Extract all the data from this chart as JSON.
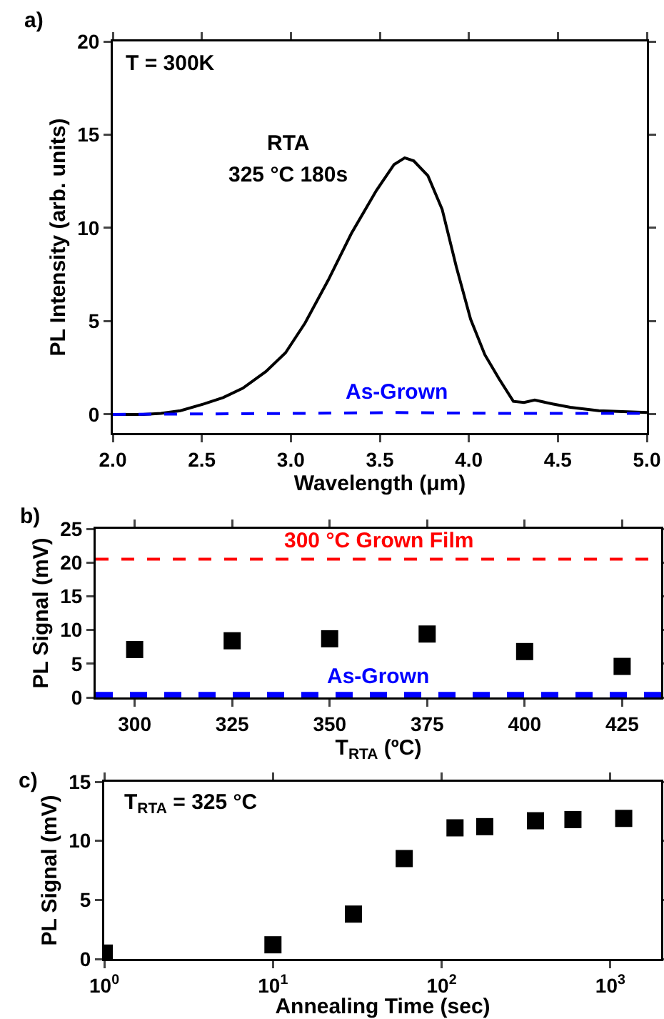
{
  "chart_data": [
    {
      "type": "line",
      "xlabel": "Wavelength (μm)",
      "ylabel": "PL Intensity (arb. units)",
      "annotations": [
        "a)",
        "T = 300K",
        "RTA",
        "325 °C 180s"
      ],
      "xlim": [
        2,
        5
      ],
      "ylim": [
        -1,
        20
      ],
      "xticks": [
        {
          "value": 2,
          "label": "2.0"
        },
        {
          "value": 2.5,
          "label": "2.5"
        },
        {
          "value": 3,
          "label": "3.0"
        },
        {
          "value": 3.5,
          "label": "3.5"
        },
        {
          "value": 4,
          "label": "4.0"
        },
        {
          "value": 4.5,
          "label": "4.5"
        },
        {
          "value": 5,
          "label": "5.0"
        }
      ],
      "yticks": [
        0,
        5,
        10,
        15,
        20
      ],
      "grid": false,
      "legend": false,
      "series": [
        {
          "color": "#000000",
          "line_style": "solid",
          "x": [
            2.0,
            2.17,
            2.27,
            2.38,
            2.51,
            2.62,
            2.73,
            2.86,
            2.97,
            3.08,
            3.21,
            3.34,
            3.48,
            3.58,
            3.64,
            3.69,
            3.77,
            3.85,
            3.93,
            4.01,
            4.09,
            4.17,
            4.25,
            4.31,
            4.37,
            4.47,
            4.57,
            4.73,
            5.0
          ],
          "values": [
            0,
            0,
            0.05,
            0.2,
            0.56,
            0.9,
            1.4,
            2.3,
            3.3,
            4.9,
            7.2,
            9.7,
            12.0,
            13.4,
            13.76,
            13.6,
            12.8,
            11.0,
            7.9,
            5.1,
            3.2,
            1.9,
            0.7,
            0.64,
            0.77,
            0.56,
            0.38,
            0.2,
            0.1
          ]
        },
        {
          "name": "As-Grown",
          "color": "#0000ff",
          "line_style": "dashed",
          "x": [
            2.0,
            3.0,
            3.6,
            4.2,
            5.0
          ],
          "values": [
            0,
            0.05,
            0.1,
            0.05,
            0.05
          ]
        }
      ]
    },
    {
      "type": "scatter",
      "xlabel": "T$_{RTA}$ (ºC)",
      "ylabel": "PL Signal (mV)",
      "annotations": [
        "b)"
      ],
      "xlim": [
        290,
        435
      ],
      "ylim": [
        0,
        25
      ],
      "xticks": [
        300,
        325,
        350,
        375,
        400,
        425
      ],
      "yticks": [
        0,
        5,
        10,
        15,
        20,
        25
      ],
      "grid": false,
      "legend": false,
      "marker": "square",
      "x": [
        300,
        325,
        350,
        375,
        400,
        425
      ],
      "series": [
        {
          "color": "#000000",
          "values": [
            7.1,
            8.4,
            8.7,
            9.4,
            6.8,
            4.6
          ]
        }
      ],
      "ref_lines": [
        {
          "axis": "y",
          "value": 20.5,
          "label": "300 °C Grown Film",
          "color": "#ff0000",
          "line_style": "dashed"
        },
        {
          "axis": "y",
          "value": 0.4,
          "label": "As-Grown",
          "color": "#0000ff",
          "line_style": "dashed"
        }
      ]
    },
    {
      "type": "scatter",
      "xlabel": "Annealing Time (sec)",
      "ylabel": "PL Signal (mV)",
      "annotations": [
        "c)",
        "T$_{RTA}$ = 325 °C"
      ],
      "log": "x",
      "xlim": [
        1,
        2000
      ],
      "ylim": [
        0,
        15
      ],
      "xticks": [
        {
          "value": 1,
          "label": "10$^{0}$"
        },
        {
          "value": 10,
          "label": "10$^{1}$"
        },
        {
          "value": 100,
          "label": "10$^{2}$"
        },
        {
          "value": 1000,
          "label": "10$^{3}$"
        }
      ],
      "yticks": [
        0,
        5,
        10,
        15
      ],
      "grid": false,
      "legend": false,
      "marker": "square",
      "x": [
        1,
        10,
        30,
        60,
        120,
        180,
        360,
        600,
        1200
      ],
      "series": [
        {
          "color": "#000000",
          "values": [
            0.5,
            1.2,
            3.8,
            8.5,
            11.1,
            11.2,
            11.7,
            11.8,
            11.9
          ]
        }
      ]
    }
  ]
}
